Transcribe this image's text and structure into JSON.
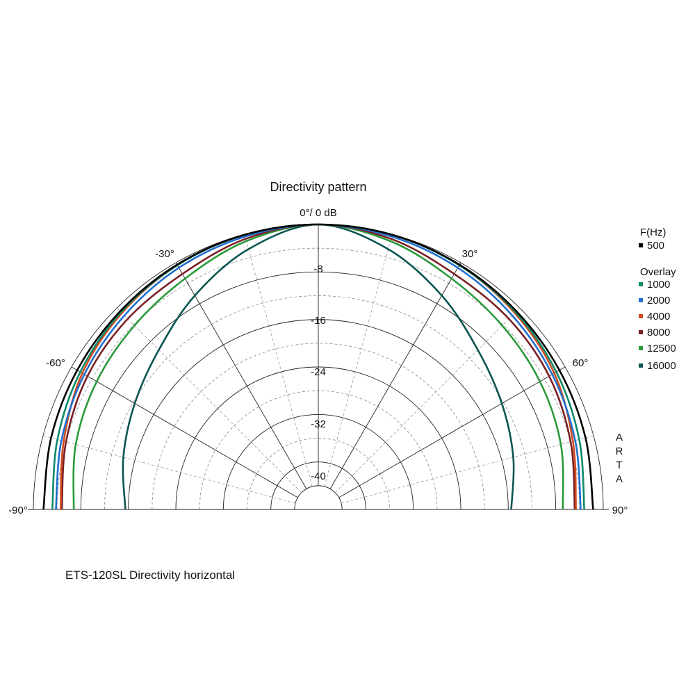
{
  "chart_data": {
    "type": "polar",
    "title": "Directivity pattern",
    "angle_range": [
      -90,
      90
    ],
    "angle_tick_labels": [
      "-90°",
      "-60°",
      "-30°",
      "0°/ 0 dB",
      "30°",
      "60°",
      "90°"
    ],
    "radial_range_db": [
      -48,
      0
    ],
    "radial_tick_labels": [
      "-8",
      "-16",
      "-24",
      "-32",
      "-40"
    ],
    "grid": true,
    "legend_position": "right",
    "legend_heading": "F(Hz)",
    "overlay_heading": "Overlay",
    "vertical_label": "ARTA",
    "angles": [
      -90,
      -75,
      -60,
      -45,
      -30,
      -15,
      0,
      15,
      30,
      45,
      60,
      75,
      90
    ],
    "series": [
      {
        "name": "500",
        "color": "#000000",
        "values": [
          -1.7,
          -1.4,
          -1.1,
          -0.8,
          -0.4,
          -0.1,
          0,
          -0.1,
          -0.4,
          -0.8,
          -1.1,
          -1.4,
          -1.7
        ]
      },
      {
        "name": "1000",
        "color": "#0d8a6b",
        "values": [
          -3.2,
          -2.5,
          -1.7,
          -1.0,
          -0.5,
          -0.1,
          0,
          -0.1,
          -0.5,
          -1.0,
          -1.7,
          -2.5,
          -3.2
        ]
      },
      {
        "name": "2000",
        "color": "#1f6fcf",
        "values": [
          -3.8,
          -3.2,
          -2.5,
          -1.8,
          -1.0,
          -0.4,
          0,
          -0.4,
          -1.0,
          -1.8,
          -2.5,
          -3.2,
          -3.8
        ]
      },
      {
        "name": "4000",
        "color": "#d04a1e",
        "values": [
          -4.6,
          -3.6,
          -2.1,
          -1.2,
          -0.5,
          -0.1,
          0,
          -0.1,
          -0.5,
          -1.2,
          -2.1,
          -3.6,
          -4.6
        ]
      },
      {
        "name": "8000",
        "color": "#7a1f24",
        "values": [
          -4.8,
          -4.0,
          -3.1,
          -2.6,
          -2.2,
          -0.8,
          0,
          -0.8,
          -2.2,
          -2.6,
          -3.1,
          -4.0,
          -4.8
        ]
      },
      {
        "name": "12500",
        "color": "#2a9a3a",
        "values": [
          -6.8,
          -5.7,
          -4.9,
          -4.2,
          -3.1,
          -1.2,
          0,
          -1.2,
          -3.1,
          -4.2,
          -4.9,
          -5.7,
          -6.8
        ]
      },
      {
        "name": "16000",
        "color": "#0b5552",
        "values": [
          -15.5,
          -14.0,
          -12.3,
          -10.0,
          -6.4,
          -2.6,
          0,
          -2.6,
          -6.4,
          -10.0,
          -12.3,
          -14.0,
          -15.5
        ]
      }
    ]
  },
  "caption": "ETS-120SL Directivity horizontal"
}
